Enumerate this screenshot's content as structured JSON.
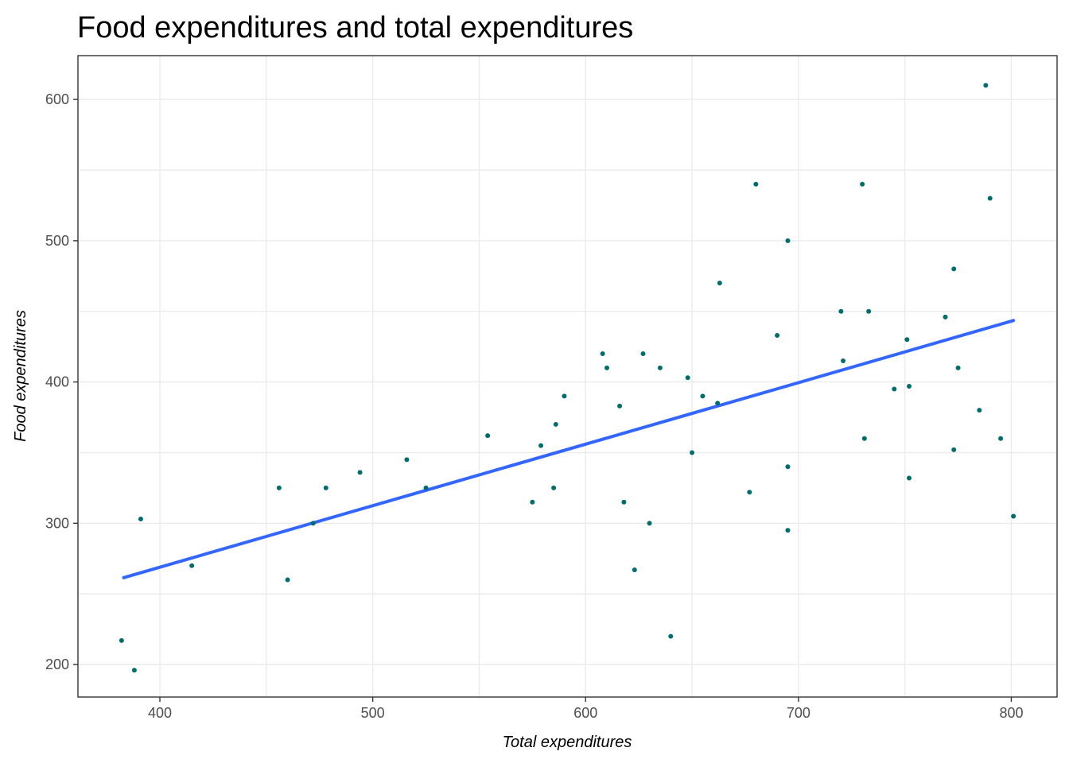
{
  "chart_data": {
    "type": "scatter",
    "title": "Food expenditures and total expenditures",
    "xlabel": "Total expenditures",
    "ylabel": "Food expenditures",
    "xlim": [
      361.5,
      821.5
    ],
    "ylim": [
      177,
      631
    ],
    "x_ticks": [
      400,
      500,
      600,
      700,
      800
    ],
    "y_ticks": [
      200,
      300,
      400,
      500,
      600
    ],
    "grid": true,
    "legend": "none",
    "point_color": "#006d6d",
    "line_color": "#3366ff",
    "points": [
      {
        "x": 382,
        "y": 217
      },
      {
        "x": 388,
        "y": 196
      },
      {
        "x": 391,
        "y": 303
      },
      {
        "x": 415,
        "y": 270
      },
      {
        "x": 456,
        "y": 325
      },
      {
        "x": 460,
        "y": 260
      },
      {
        "x": 472,
        "y": 300
      },
      {
        "x": 478,
        "y": 325
      },
      {
        "x": 494,
        "y": 336
      },
      {
        "x": 516,
        "y": 345
      },
      {
        "x": 525,
        "y": 325
      },
      {
        "x": 554,
        "y": 362
      },
      {
        "x": 575,
        "y": 315
      },
      {
        "x": 579,
        "y": 355
      },
      {
        "x": 585,
        "y": 325
      },
      {
        "x": 586,
        "y": 370
      },
      {
        "x": 590,
        "y": 390
      },
      {
        "x": 608,
        "y": 420
      },
      {
        "x": 610,
        "y": 410
      },
      {
        "x": 616,
        "y": 383
      },
      {
        "x": 618,
        "y": 315
      },
      {
        "x": 623,
        "y": 267
      },
      {
        "x": 627,
        "y": 420
      },
      {
        "x": 630,
        "y": 300
      },
      {
        "x": 635,
        "y": 410
      },
      {
        "x": 640,
        "y": 220
      },
      {
        "x": 648,
        "y": 403
      },
      {
        "x": 650,
        "y": 350
      },
      {
        "x": 655,
        "y": 390
      },
      {
        "x": 662,
        "y": 385
      },
      {
        "x": 663,
        "y": 470
      },
      {
        "x": 677,
        "y": 322
      },
      {
        "x": 680,
        "y": 540
      },
      {
        "x": 690,
        "y": 433
      },
      {
        "x": 695,
        "y": 500
      },
      {
        "x": 695,
        "y": 340
      },
      {
        "x": 695,
        "y": 295
      },
      {
        "x": 720,
        "y": 450
      },
      {
        "x": 721,
        "y": 415
      },
      {
        "x": 730,
        "y": 540
      },
      {
        "x": 731,
        "y": 360
      },
      {
        "x": 733,
        "y": 450
      },
      {
        "x": 745,
        "y": 395
      },
      {
        "x": 751,
        "y": 430
      },
      {
        "x": 752,
        "y": 397
      },
      {
        "x": 752,
        "y": 332
      },
      {
        "x": 769,
        "y": 446
      },
      {
        "x": 773,
        "y": 480
      },
      {
        "x": 773,
        "y": 352
      },
      {
        "x": 775,
        "y": 410
      },
      {
        "x": 785,
        "y": 380
      },
      {
        "x": 788,
        "y": 610
      },
      {
        "x": 790,
        "y": 530
      },
      {
        "x": 795,
        "y": 360
      },
      {
        "x": 801,
        "y": 305
      }
    ],
    "fit_line": {
      "type": "linear",
      "x": [
        383,
        801
      ],
      "y": [
        261.5,
        443.5
      ]
    }
  }
}
